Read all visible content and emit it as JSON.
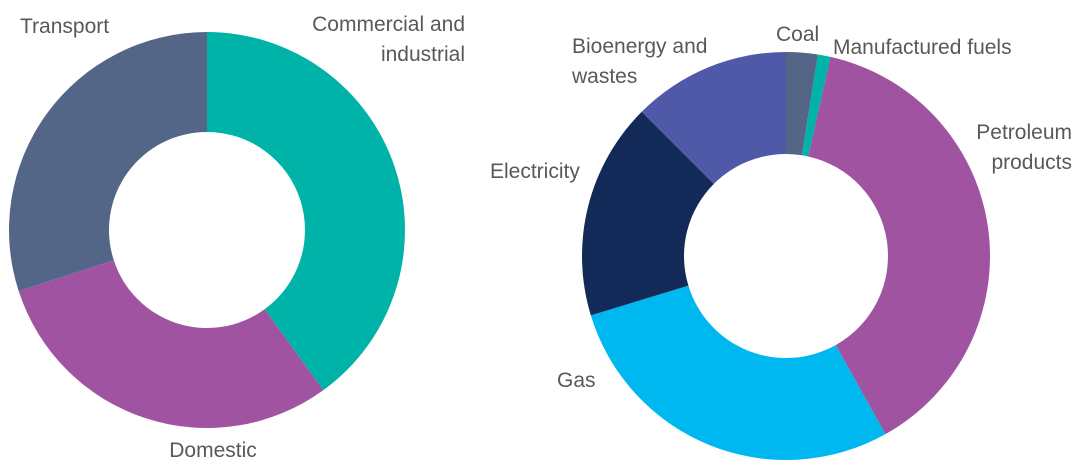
{
  "chart_data": [
    {
      "type": "donut",
      "categories": [
        "Commercial and industrial",
        "Domestic",
        "Transport"
      ],
      "values": [
        40,
        30,
        30
      ],
      "colors": [
        "#00b3a8",
        "#a053a0",
        "#546687"
      ]
    },
    {
      "type": "donut",
      "categories": [
        "Coal",
        "Manufactured fuels",
        "Petroleum products",
        "Gas",
        "Electricity",
        "Bioenergy and wastes"
      ],
      "values": [
        2.5,
        1,
        38.4,
        28.4,
        17.2,
        12.5
      ],
      "colors": [
        "#546687",
        "#00b3a8",
        "#a053a0",
        "#00b8f0",
        "#132a58",
        "#5058a8"
      ]
    }
  ]
}
